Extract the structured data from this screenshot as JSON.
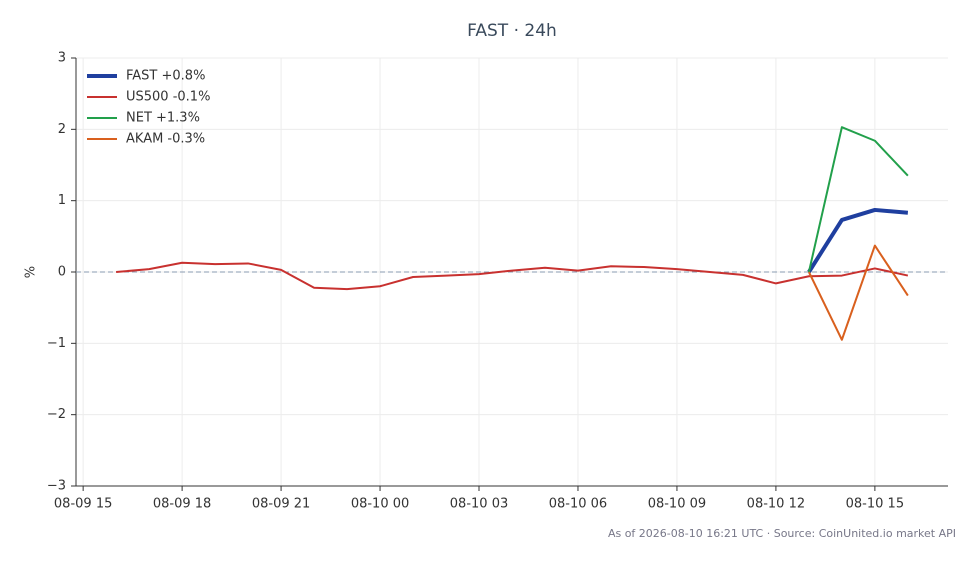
{
  "chart_data": {
    "type": "line",
    "title": "FAST · 24h",
    "y_label": "%",
    "footnote": "As of 2026-08-10 16:21 UTC · Source: CoinUnited.io market API",
    "x": [
      "08-09 16",
      "08-09 17",
      "08-09 18",
      "08-09 19",
      "08-09 20",
      "08-09 21",
      "08-09 22",
      "08-09 23",
      "08-10 00",
      "08-10 01",
      "08-10 02",
      "08-10 03",
      "08-10 04",
      "08-10 05",
      "08-10 06",
      "08-10 07",
      "08-10 08",
      "08-10 09",
      "08-10 10",
      "08-10 11",
      "08-10 12",
      "08-10 13",
      "08-10 14",
      "08-10 15",
      "08-10 16"
    ],
    "xlim": [
      "08-09 14:47",
      "08-10 17:13"
    ],
    "xticks": [
      "08-09 15",
      "08-09 18",
      "08-09 21",
      "08-10 00",
      "08-10 03",
      "08-10 06",
      "08-10 09",
      "08-10 12",
      "08-10 15"
    ],
    "ylim": [
      -3,
      3
    ],
    "yticks": [
      {
        "value": -3,
        "label": "−3"
      },
      {
        "value": -2,
        "label": "−2"
      },
      {
        "value": -1,
        "label": "−1"
      },
      0,
      1,
      2,
      3
    ],
    "grid": true,
    "zero_line": true,
    "legend": "upper left",
    "series": [
      {
        "name": "FAST +0.8%",
        "color": "#1f3f9f",
        "width": 4,
        "values": [
          null,
          null,
          null,
          null,
          null,
          null,
          null,
          null,
          null,
          null,
          null,
          null,
          null,
          null,
          null,
          null,
          null,
          null,
          null,
          null,
          null,
          0,
          0.73,
          0.87,
          0.83
        ]
      },
      {
        "name": "US500 -0.1%",
        "color": "#c8312f",
        "width": 2,
        "values": [
          0,
          0.04,
          0.13,
          0.11,
          0.12,
          0.03,
          -0.22,
          -0.24,
          -0.2,
          -0.07,
          -0.05,
          -0.03,
          0.02,
          0.06,
          0.02,
          0.08,
          0.07,
          0.04,
          0,
          -0.04,
          -0.16,
          -0.06,
          -0.05,
          0.05,
          -0.05
        ]
      },
      {
        "name": "NET +1.3%",
        "color": "#22a04b",
        "width": 2,
        "values": [
          null,
          null,
          null,
          null,
          null,
          null,
          null,
          null,
          null,
          null,
          null,
          null,
          null,
          null,
          null,
          null,
          null,
          null,
          null,
          null,
          null,
          0,
          2.03,
          1.84,
          1.35
        ]
      },
      {
        "name": "AKAM -0.3%",
        "color": "#d9601e",
        "width": 2,
        "values": [
          null,
          null,
          null,
          null,
          null,
          null,
          null,
          null,
          null,
          null,
          null,
          null,
          null,
          null,
          null,
          null,
          null,
          null,
          null,
          null,
          null,
          0,
          -0.95,
          0.37,
          -0.33
        ]
      }
    ]
  }
}
